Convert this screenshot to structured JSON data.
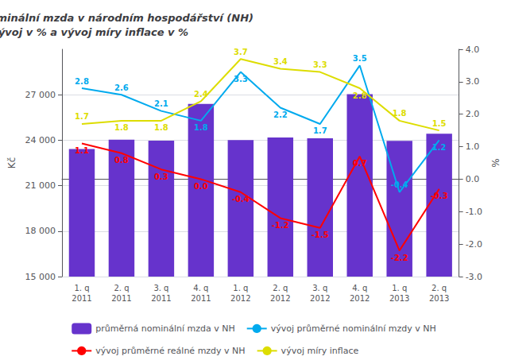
{
  "chart_data": {
    "type": "bar",
    "title": "Průměrná měsíční nominální mzda v národním hospodářství (NH)\nv Kč, její vývoj v % a vývoj míry inflace v %",
    "categories": [
      "1. q\n2011",
      "2. q\n2011",
      "3. q\n2011",
      "4. q\n2011",
      "1. q\n2012",
      "2. q\n2012",
      "3. q\n2012",
      "4. q\n2012",
      "1. q\n2013",
      "2. q\n2013"
    ],
    "series": [
      {
        "name": "průměrná nominální mzda v NH",
        "type": "bar",
        "color": "#6633CC",
        "values": [
          23424,
          24033,
          23965,
          26394,
          24014,
          24183,
          24130,
          27039,
          23959,
          24430
        ]
      },
      {
        "name": "vývoj průměrné nominální mzdy v NH",
        "type": "line",
        "axis": "y2",
        "color": "#00AAEE",
        "data_labels": true,
        "values": [
          2.8,
          2.6,
          2.1,
          1.8,
          3.3,
          2.2,
          1.7,
          3.5,
          -0.4,
          1.2
        ],
        "value_labels": [
          "2.8",
          "2.6",
          "2.1",
          "1.8",
          "3.3",
          "2.2",
          "1.7",
          "3.5",
          "-0.4",
          "1.2"
        ]
      },
      {
        "name": "vývoj průměrné reálné mzdy v NH",
        "type": "line",
        "axis": "y2",
        "color": "#FF0000",
        "data_labels": true,
        "values": [
          1.1,
          0.8,
          0.3,
          0.0,
          -0.4,
          -1.2,
          -1.5,
          0.7,
          -2.2,
          -0.3
        ],
        "value_labels": [
          "1.1",
          "0.8",
          "0.3",
          "0.0",
          "-0.4",
          "-1.2",
          "-1.5",
          "0.7",
          "-2.2",
          "-0.3"
        ]
      },
      {
        "name": "vývoj míry inflace",
        "type": "line",
        "axis": "y2",
        "color": "#DDDD00",
        "data_labels": true,
        "values": [
          1.7,
          1.8,
          1.8,
          2.4,
          3.7,
          3.4,
          3.3,
          2.8,
          1.8,
          1.5
        ],
        "value_labels": [
          "1.7",
          "1.8",
          "1.8",
          "2.4",
          "3.7",
          "3.4",
          "3.3",
          "2.8",
          "1.8",
          "1.5"
        ]
      }
    ],
    "ylabel": "Kč",
    "y2label": "%",
    "ylim": [
      15000,
      30000
    ],
    "yticks": [
      {
        "value": 15000,
        "label": "15 000"
      },
      {
        "value": 18000,
        "label": "18 000"
      },
      {
        "value": 21000,
        "label": "21 000"
      },
      {
        "value": 24000,
        "label": "24 000"
      },
      {
        "value": 27000,
        "label": "27 000"
      }
    ],
    "y2lim": [
      -3.0,
      4.0
    ],
    "y2ticks": [
      {
        "value": -3.0,
        "label": "-3.0"
      },
      {
        "value": -2.0,
        "label": "-2.0"
      },
      {
        "value": -1.0,
        "label": "-1.0"
      },
      {
        "value": 0.0,
        "label": "0.0"
      },
      {
        "value": 1.0,
        "label": "1.0"
      },
      {
        "value": 2.0,
        "label": "2.0"
      },
      {
        "value": 3.0,
        "label": "3.0"
      },
      {
        "value": 4.0,
        "label": "4.0"
      }
    ],
    "grid": true,
    "legend": "bottom"
  }
}
